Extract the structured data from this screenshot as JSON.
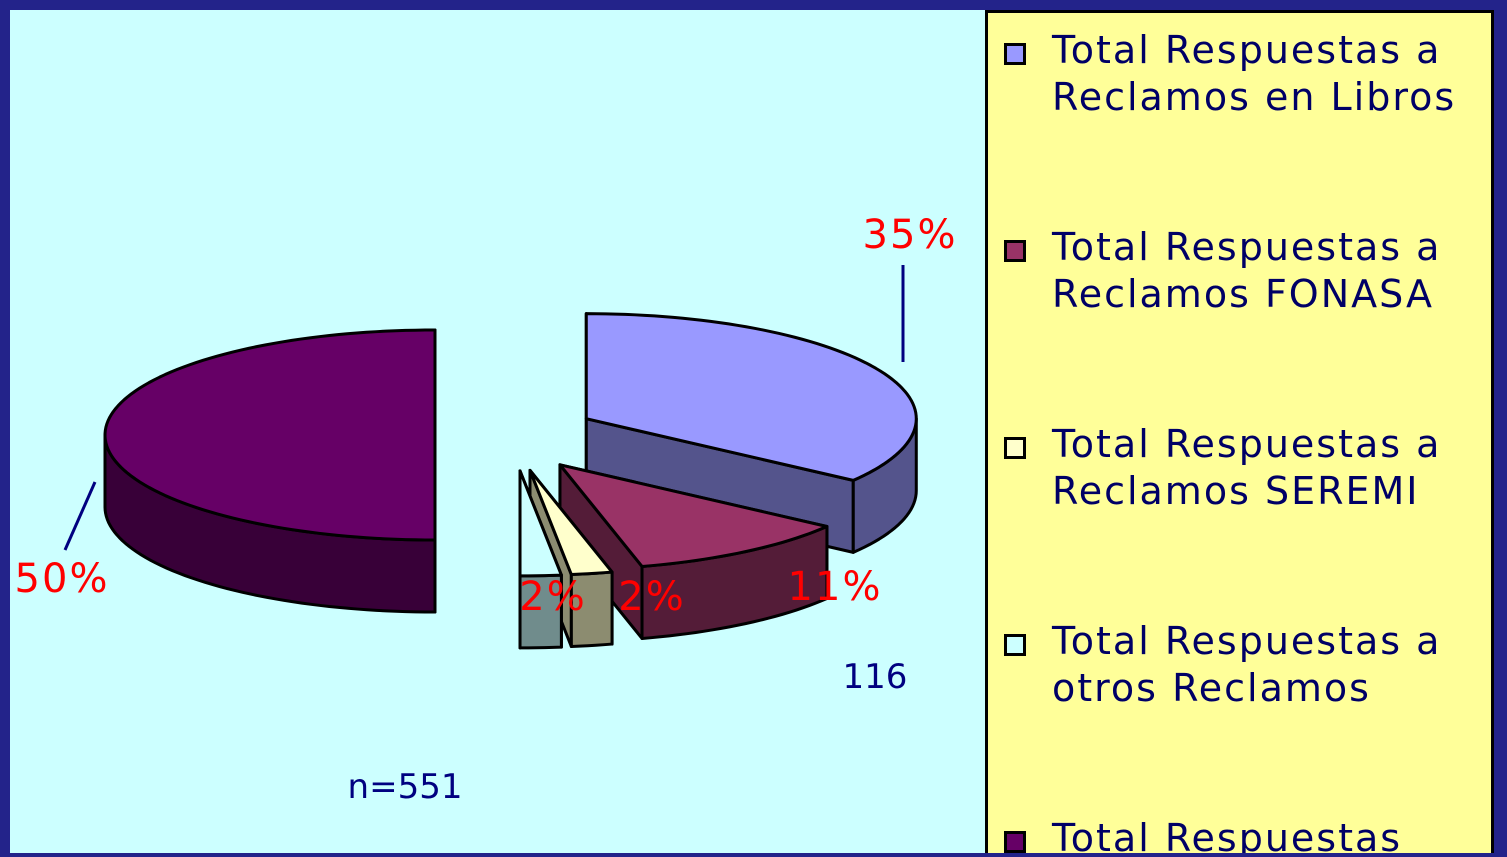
{
  "chart_data": {
    "type": "pie3d",
    "categories": [
      "Total Respuestas a Reclamos en Libros",
      "Total Respuestas a Reclamos FONASA",
      "Total Respuestas a Reclamos SEREMI",
      "Total Respuestas a otros Reclamos",
      "Total Respuestas"
    ],
    "values": [
      35,
      11,
      2,
      2,
      50
    ],
    "value_labels": [
      "35%",
      "11%",
      "2%",
      "2%",
      "50%"
    ],
    "colors": [
      "#9999ff",
      "#993366",
      "#ffffcc",
      "#ccffff",
      "#660066"
    ],
    "annotations": [
      "116",
      "n=551"
    ]
  }
}
